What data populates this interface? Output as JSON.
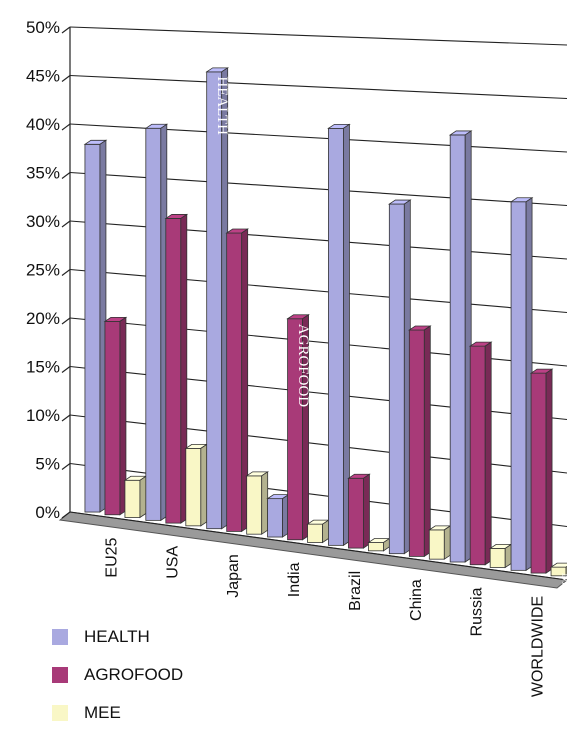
{
  "chart_data": {
    "type": "bar",
    "categories": [
      "EU25",
      "USA",
      "Japan",
      "India",
      "Brazil",
      "China",
      "Russia",
      "WORLDWIDE"
    ],
    "series": [
      {
        "name": "HEALTH",
        "color": "#a9a9e0",
        "values": [
          38,
          40,
          46,
          4,
          41,
          34,
          41,
          35
        ]
      },
      {
        "name": "AGROFOOD",
        "color": "#a83a78",
        "values": [
          20,
          31,
          30,
          22,
          7,
          22,
          21,
          19
        ]
      },
      {
        "name": "MEE",
        "color": "#f9f7c6",
        "values": [
          4,
          8,
          6,
          2,
          1,
          3,
          2,
          1
        ]
      }
    ],
    "ylim": [
      0,
      50
    ],
    "yticks": [
      "0%",
      "5%",
      "10%",
      "15%",
      "20%",
      "25%",
      "30%",
      "35%",
      "40%",
      "45%",
      "50%"
    ],
    "bar_labels": {
      "HEALTH": "HEALTH",
      "AGROFOOD": "AGROFOOD",
      "MEE": "MEE"
    },
    "grid": true,
    "legend_position": "bottom-left"
  }
}
